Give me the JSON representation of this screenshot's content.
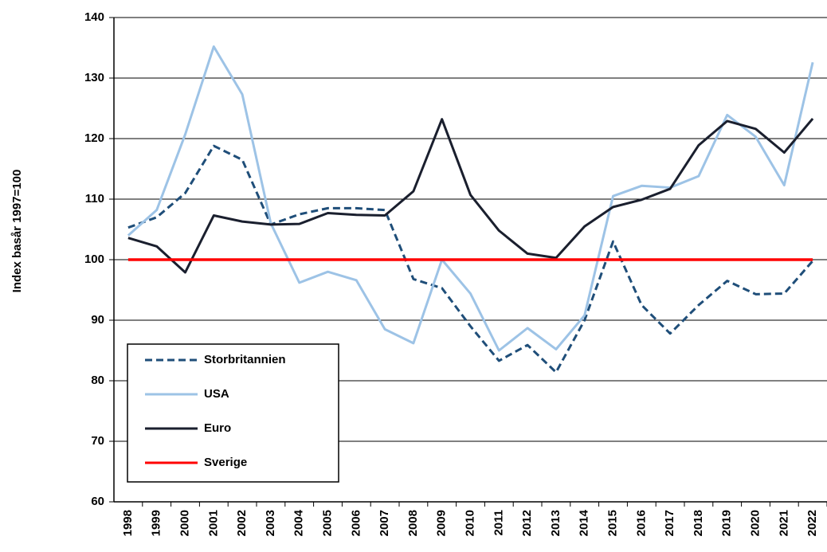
{
  "chart_data": {
    "type": "line",
    "y_label": "Index basår 1997=100",
    "categories": [
      "1998",
      "1999",
      "2000",
      "2001",
      "2002",
      "2003",
      "2004",
      "2005",
      "2006",
      "2007",
      "2008",
      "2009",
      "2010",
      "2011",
      "2012",
      "2013",
      "2014",
      "2015",
      "2016",
      "2017",
      "2018",
      "2019",
      "2020",
      "2021",
      "2022"
    ],
    "series": [
      {
        "name": "Storbritannien",
        "color": "#1f4e79",
        "dash": true,
        "values": [
          105.3,
          107,
          111,
          118.8,
          116.5,
          105.8,
          107.5,
          108.5,
          108.5,
          108.2,
          96.8,
          95.3,
          89,
          83.3,
          85.9,
          81.4,
          90,
          103,
          92.5,
          87.8,
          92.5,
          96.5,
          94.3,
          94.4,
          99.8
        ]
      },
      {
        "name": "USA",
        "color": "#9dc3e6",
        "dash": false,
        "values": [
          104,
          108.2,
          120.7,
          135.2,
          127.3,
          106,
          96.2,
          98,
          96.6,
          88.5,
          86.2,
          100,
          94.4,
          85,
          88.7,
          85.2,
          90.8,
          110.5,
          112.2,
          111.9,
          113.8,
          123.9,
          120.3,
          112.3,
          132.6
        ]
      },
      {
        "name": "Euro",
        "color": "#1a1f2e",
        "dash": false,
        "values": [
          103.6,
          102.2,
          97.9,
          107.3,
          106.3,
          105.8,
          105.9,
          107.7,
          107.4,
          107.3,
          111.3,
          123.2,
          110.7,
          104.8,
          101,
          100.3,
          105.5,
          108.7,
          109.9,
          111.7,
          118.9,
          122.9,
          121.6,
          117.7,
          123.3
        ]
      },
      {
        "name": "Sverige",
        "color": "#ff0000",
        "dash": false,
        "values": [
          100,
          100,
          100,
          100,
          100,
          100,
          100,
          100,
          100,
          100,
          100,
          100,
          100,
          100,
          100,
          100,
          100,
          100,
          100,
          100,
          100,
          100,
          100,
          100,
          100
        ]
      }
    ],
    "ylim": [
      60,
      140
    ],
    "yticks": [
      60,
      70,
      80,
      90,
      100,
      110,
      120,
      130,
      140
    ],
    "grid": true,
    "legend": "lower left"
  }
}
